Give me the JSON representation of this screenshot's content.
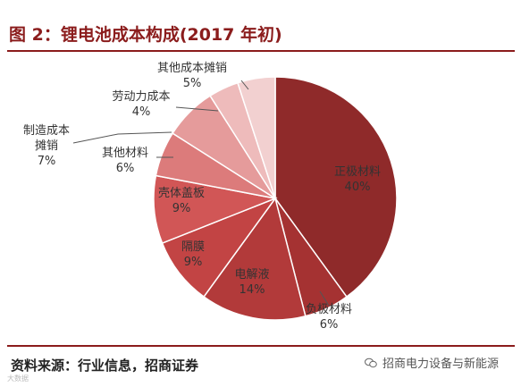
{
  "title": "图 2：锂电池成本构成(2017 年初)",
  "source": "资料来源：行业信息，招商证券",
  "wechat_account": "招商电力设备与新能源",
  "watermark": "大数据",
  "colors": {
    "accent": "#8b1c1c",
    "leader_line": "#555555"
  },
  "chart_data": {
    "type": "pie",
    "start": "12 o'clock",
    "direction": "clockwise",
    "legend": "none",
    "slices": [
      {
        "label": "正极材料",
        "value": 40,
        "pct_label": "40%",
        "color": "#8f2a2a"
      },
      {
        "label": "负极材料",
        "value": 6,
        "pct_label": "6%",
        "color": "#a53232"
      },
      {
        "label": "电解液",
        "value": 14,
        "pct_label": "14%",
        "color": "#b23a3a"
      },
      {
        "label": "隔膜",
        "value": 9,
        "pct_label": "9%",
        "color": "#c24444"
      },
      {
        "label": "壳体盖板",
        "value": 9,
        "pct_label": "9%",
        "color": "#d15656"
      },
      {
        "label": "其他材料",
        "value": 6,
        "pct_label": "6%",
        "color": "#dc7b7b"
      },
      {
        "label": "制造成本\n摊销",
        "value": 7,
        "pct_label": "7%",
        "color": "#e59b9b"
      },
      {
        "label": "劳动力成本",
        "value": 4,
        "pct_label": "4%",
        "color": "#eebbbb"
      },
      {
        "label": "其他成本摊销",
        "value": 5,
        "pct_label": "5%",
        "color": "#f2d0d0"
      }
    ]
  }
}
